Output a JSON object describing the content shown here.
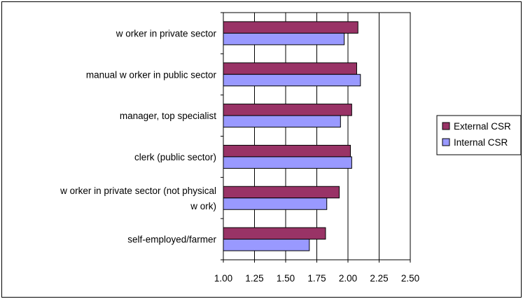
{
  "chart_data": {
    "type": "bar",
    "orientation": "horizontal",
    "categories": [
      [
        "w orker in private sector"
      ],
      [
        "manual w orker in public sector"
      ],
      [
        "manager, top specialist"
      ],
      [
        "clerk (public sector)"
      ],
      [
        "w orker in private sector (not physical",
        "w ork)"
      ],
      [
        "self-employed/farmer"
      ]
    ],
    "series": [
      {
        "name": "External CSR",
        "color": "#993366",
        "values": [
          2.08,
          2.07,
          2.03,
          2.02,
          1.93,
          1.82
        ]
      },
      {
        "name": "Internal CSR",
        "color": "#9999ff",
        "values": [
          1.97,
          2.1,
          1.94,
          2.03,
          1.83,
          1.69
        ]
      }
    ],
    "xlim": [
      1.0,
      2.5
    ],
    "x_ticks": [
      "1.00",
      "1.25",
      "1.50",
      "1.75",
      "2.00",
      "2.25",
      "2.50"
    ],
    "gridlines": "vertical-major",
    "legend_position": "right",
    "title": "",
    "xlabel": "",
    "ylabel": ""
  }
}
